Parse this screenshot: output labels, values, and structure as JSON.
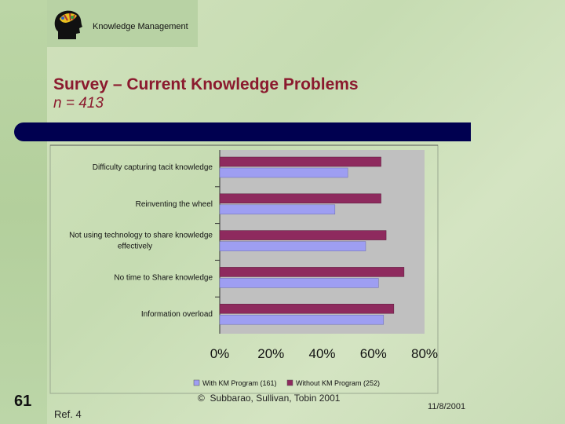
{
  "header": {
    "title": "Knowledge Management",
    "logo_icon": "head-profile-logo-icon"
  },
  "slide": {
    "title": "Survey – Current Knowledge Problems",
    "subtitle": "n = 413",
    "number": "61",
    "reference": "Ref. 4",
    "copyright": "Subbarao, Sullivan, Tobin 2001",
    "copyright_symbol": "©",
    "date": "11/8/2001"
  },
  "colors": {
    "title": "#8b1a2e",
    "bar_with": "#9e9ef2",
    "bar_without": "#8e2a5e",
    "navy": "#000050",
    "plot_bg": "#c0c0c0"
  },
  "chart_data": {
    "type": "bar",
    "orientation": "horizontal",
    "categories": [
      "Difficulty capturing tacit knowledge",
      "Reinventing the wheel",
      "Not using technology to share knowledge effectively",
      "No time to Share knowledge",
      "Information overload"
    ],
    "category_lines": [
      [
        "Difficulty capturing tacit knowledge"
      ],
      [
        "Reinventing the wheel"
      ],
      [
        "Not using technology to share knowledge",
        "effectively"
      ],
      [
        "No time to Share knowledge"
      ],
      [
        "Information overload"
      ]
    ],
    "series": [
      {
        "name": "With KM Program (161)",
        "values": [
          50,
          45,
          57,
          62,
          64
        ]
      },
      {
        "name": "Without KM Program (252)",
        "values": [
          63,
          63,
          65,
          72,
          68
        ]
      }
    ],
    "xlim": [
      0,
      80
    ],
    "xticks": [
      "0%",
      "20%",
      "40%",
      "60%",
      "80%"
    ],
    "grid": false,
    "legend_position": "bottom"
  }
}
